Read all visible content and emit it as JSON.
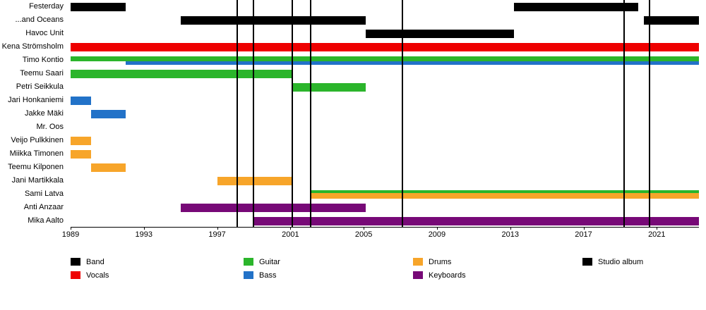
{
  "chart_data": {
    "type": "timeline",
    "x_axis": {
      "start": 1989,
      "end": 2023.3,
      "ticks": [
        1989,
        1993,
        1997,
        2001,
        2005,
        2009,
        2013,
        2017,
        2021
      ]
    },
    "album_lines": [
      1998.1,
      1999.0,
      2001.1,
      2002.1,
      2007.1,
      2019.2,
      2020.6
    ],
    "colors": {
      "band": "#000000",
      "vocals": "#ee0000",
      "guitar": "#2bb52b",
      "bass": "#2272c8",
      "drums": "#f7a52a",
      "keyboards": "#770977"
    },
    "rows": [
      {
        "label": "Festerday",
        "bars": [
          {
            "start": 1989,
            "end": 1992,
            "color": "band",
            "track": "full"
          },
          {
            "start": 2013.2,
            "end": 2020.0,
            "color": "band",
            "track": "full"
          }
        ]
      },
      {
        "label": "...and Oceans",
        "bars": [
          {
            "start": 1995,
            "end": 2005.1,
            "color": "band",
            "track": "full"
          },
          {
            "start": 2020.3,
            "end": 2023.3,
            "color": "band",
            "track": "full"
          }
        ]
      },
      {
        "label": "Havoc Unit",
        "bars": [
          {
            "start": 2005.1,
            "end": 2013.2,
            "color": "band",
            "track": "full"
          }
        ]
      },
      {
        "label": "Kena Strömsholm",
        "bars": [
          {
            "start": 1989,
            "end": 2023.3,
            "color": "vocals",
            "track": "full"
          }
        ]
      },
      {
        "label": "Timo Kontio",
        "bars": [
          {
            "start": 1989,
            "end": 2023.3,
            "color": "guitar",
            "track": "top"
          },
          {
            "start": 1992,
            "end": 2023.3,
            "color": "bass",
            "track": "bottom"
          }
        ]
      },
      {
        "label": "Teemu Saari",
        "bars": [
          {
            "start": 1989,
            "end": 2001.1,
            "color": "guitar",
            "track": "full"
          }
        ]
      },
      {
        "label": "Petri Seikkula",
        "bars": [
          {
            "start": 2001.1,
            "end": 2005.1,
            "color": "guitar",
            "track": "full"
          }
        ]
      },
      {
        "label": "Jari Honkaniemi",
        "bars": [
          {
            "start": 1989,
            "end": 1990.1,
            "color": "bass",
            "track": "full"
          }
        ]
      },
      {
        "label": "Jakke Mäki",
        "bars": [
          {
            "start": 1990.1,
            "end": 1992.0,
            "color": "bass",
            "track": "full"
          }
        ]
      },
      {
        "label": "Mr. Oos",
        "bars": []
      },
      {
        "label": "Veijo Pulkkinen",
        "bars": [
          {
            "start": 1989,
            "end": 1990.1,
            "color": "drums",
            "track": "full"
          }
        ]
      },
      {
        "label": "Miikka Timonen",
        "bars": [
          {
            "start": 1989,
            "end": 1990.1,
            "color": "drums",
            "track": "full"
          }
        ]
      },
      {
        "label": "Teemu Kilponen",
        "bars": [
          {
            "start": 1990.1,
            "end": 1992.0,
            "color": "drums",
            "track": "full"
          }
        ]
      },
      {
        "label": "Jani Martikkala",
        "bars": [
          {
            "start": 1997,
            "end": 2001.1,
            "color": "drums",
            "track": "full"
          }
        ]
      },
      {
        "label": "Sami Latva",
        "bars": [
          {
            "start": 2002.1,
            "end": 2023.3,
            "color": "guitar",
            "track": "top-thin"
          },
          {
            "start": 2002.1,
            "end": 2023.3,
            "color": "drums",
            "track": "bottom-thick"
          }
        ]
      },
      {
        "label": "Anti Anzaar",
        "bars": [
          {
            "start": 1995,
            "end": 2005.1,
            "color": "keyboards",
            "track": "full"
          }
        ]
      },
      {
        "label": "Mika Aalto",
        "bars": [
          {
            "start": 1999,
            "end": 2023.3,
            "color": "keyboards",
            "track": "full"
          }
        ]
      }
    ],
    "legend": {
      "columns": [
        [
          {
            "label": "Band",
            "color": "band"
          },
          {
            "label": "Vocals",
            "color": "vocals"
          }
        ],
        [
          {
            "label": "Guitar",
            "color": "guitar"
          },
          {
            "label": "Bass",
            "color": "bass"
          }
        ],
        [
          {
            "label": "Drums",
            "color": "drums"
          },
          {
            "label": "Keyboards",
            "color": "keyboards"
          }
        ],
        [
          {
            "label": "Studio album",
            "color": "band"
          }
        ]
      ]
    }
  }
}
